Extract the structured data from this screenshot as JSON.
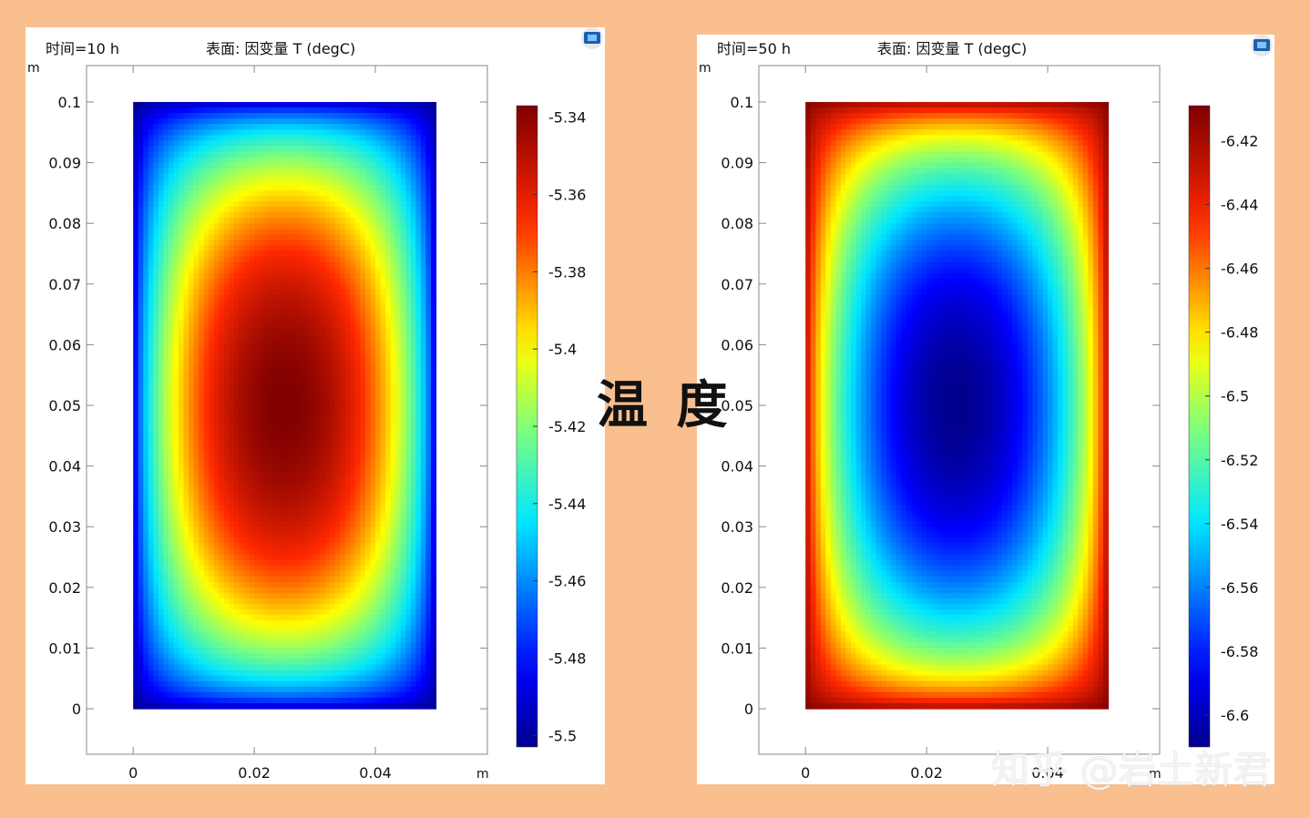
{
  "center_title": "温 度",
  "watermark": "知乎 @岩土新君",
  "chart_data": [
    {
      "type": "heatmap",
      "time_label": "时间=10 h",
      "title": "表面: 因变量 T (degC)",
      "xlabel": "m",
      "ylabel": "m",
      "x_ticks": [
        "0",
        "0.02",
        "0.04"
      ],
      "x_tick_values": [
        0,
        0.02,
        0.04
      ],
      "y_ticks": [
        "0",
        "0.01",
        "0.02",
        "0.03",
        "0.04",
        "0.05",
        "0.06",
        "0.07",
        "0.08",
        "0.09",
        "0.1"
      ],
      "y_tick_values": [
        0,
        0.01,
        0.02,
        0.03,
        0.04,
        0.05,
        0.06,
        0.07,
        0.08,
        0.09,
        0.1
      ],
      "xlim": [
        -0.0077,
        0.0585
      ],
      "ylim": [
        -0.0075,
        0.106
      ],
      "domain_x": [
        0,
        0.05
      ],
      "domain_y": [
        0,
        0.1
      ],
      "colorbar_ticks": [
        "-5.34",
        "-5.36",
        "-5.38",
        "-5.4",
        "-5.42",
        "-5.44",
        "-5.46",
        "-5.48",
        "-5.5"
      ],
      "colorbar_values": [
        -5.34,
        -5.36,
        -5.38,
        -5.4,
        -5.42,
        -5.44,
        -5.46,
        -5.48,
        -5.5
      ],
      "colorbar_range": [
        -5.503,
        -5.337
      ],
      "center_value": -5.337,
      "boundary_value": -5.503,
      "pattern": "warm-center",
      "colormap": "rainbow"
    },
    {
      "type": "heatmap",
      "time_label": "时间=50 h",
      "title": "表面: 因变量 T (degC)",
      "xlabel": "m",
      "ylabel": "m",
      "x_ticks": [
        "0",
        "0.02",
        "0.04"
      ],
      "x_tick_values": [
        0,
        0.02,
        0.04
      ],
      "y_ticks": [
        "0",
        "0.01",
        "0.02",
        "0.03",
        "0.04",
        "0.05",
        "0.06",
        "0.07",
        "0.08",
        "0.09",
        "0.1"
      ],
      "y_tick_values": [
        0,
        0.01,
        0.02,
        0.03,
        0.04,
        0.05,
        0.06,
        0.07,
        0.08,
        0.09,
        0.1
      ],
      "xlim": [
        -0.0077,
        0.0585
      ],
      "ylim": [
        -0.0075,
        0.106
      ],
      "domain_x": [
        0,
        0.05
      ],
      "domain_y": [
        0,
        0.1
      ],
      "colorbar_ticks": [
        "-6.42",
        "-6.44",
        "-6.46",
        "-6.48",
        "-6.5",
        "-6.52",
        "-6.54",
        "-6.56",
        "-6.58",
        "-6.6"
      ],
      "colorbar_values": [
        -6.42,
        -6.44,
        -6.46,
        -6.48,
        -6.5,
        -6.52,
        -6.54,
        -6.56,
        -6.58,
        -6.6
      ],
      "colorbar_range": [
        -6.61,
        -6.409
      ],
      "center_value": -6.61,
      "boundary_value": -6.409,
      "pattern": "cold-center",
      "colormap": "rainbow"
    }
  ],
  "colors": {
    "background": "#f9bf8f",
    "panel": "#ffffff",
    "axis": "#888888",
    "text": "#111111"
  }
}
